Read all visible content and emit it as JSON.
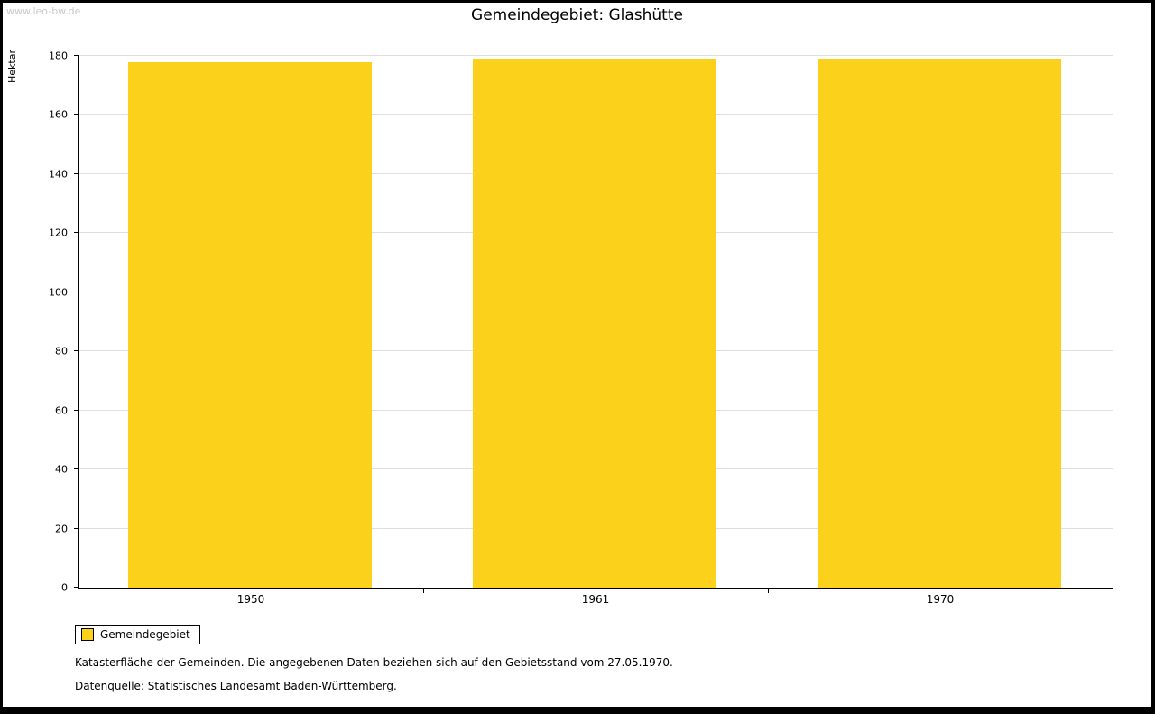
{
  "watermark": "www.leo-bw.de",
  "title": "Gemeindegebiet: Glashütte",
  "chart_data": {
    "type": "bar",
    "title": "Gemeindegebiet: Glashütte",
    "categories": [
      "1950",
      "1961",
      "1970"
    ],
    "series": [
      {
        "name": "Gemeindegebiet",
        "values": [
          178,
          179,
          179
        ]
      }
    ],
    "xlabel": "",
    "ylabel": "Hektar",
    "ylim": [
      0,
      180
    ],
    "ytick_step": 20,
    "grid": true,
    "bar_color": "#FCD11C",
    "legend_position": "bottom-left"
  },
  "legend": {
    "items": [
      {
        "label": "Gemeindegebiet",
        "color": "#FCD11C"
      }
    ]
  },
  "footnotes": [
    "Katasterfläche der Gemeinden. Die angegebenen Daten beziehen sich auf den Gebietsstand vom 27.05.1970.",
    "Datenquelle: Statistisches Landesamt Baden-Württemberg."
  ]
}
